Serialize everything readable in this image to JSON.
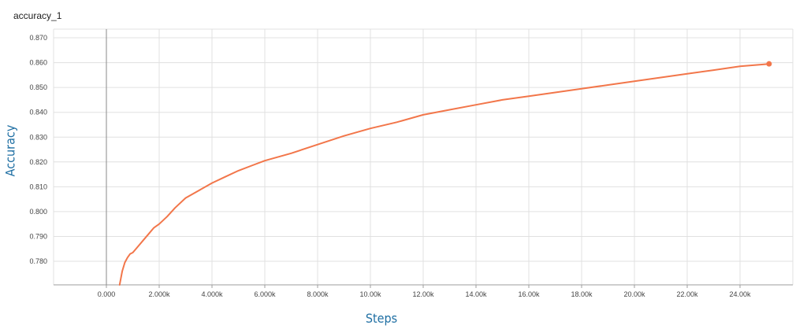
{
  "chart_data": {
    "type": "line",
    "title": "accuracy_1",
    "xlabel": "Steps",
    "ylabel": "Accuracy",
    "xlim": [
      -2000,
      26000
    ],
    "ylim": [
      0.7705,
      0.8735
    ],
    "x_ticks": [
      0,
      2000,
      4000,
      6000,
      8000,
      10000,
      12000,
      14000,
      16000,
      18000,
      20000,
      22000,
      24000
    ],
    "x_tick_labels": [
      "0.000",
      "2.000k",
      "4.000k",
      "6.000k",
      "8.000k",
      "10.00k",
      "12.00k",
      "14.00k",
      "16.00k",
      "18.00k",
      "20.00k",
      "22.00k",
      "24.00k"
    ],
    "y_ticks": [
      0.78,
      0.79,
      0.8,
      0.81,
      0.82,
      0.83,
      0.84,
      0.85,
      0.86,
      0.87
    ],
    "y_tick_labels": [
      "0.780",
      "0.790",
      "0.800",
      "0.810",
      "0.820",
      "0.830",
      "0.840",
      "0.850",
      "0.860",
      "0.870"
    ],
    "grid": true,
    "colors": {
      "line": "#f2764a",
      "grid": "#e0e0e0",
      "axis": "#9e9e9e",
      "label": "#1f6fa3"
    },
    "series": [
      {
        "x": [
          500,
          600,
          700,
          800,
          900,
          1000,
          1200,
          1400,
          1600,
          1800,
          2000,
          2300,
          2600,
          3000,
          3500,
          4000,
          4500,
          5000,
          5500,
          6000,
          7000,
          8000,
          9000,
          10000,
          11000,
          12000,
          13000,
          14000,
          15000,
          16000,
          17000,
          18000,
          19000,
          20000,
          21000,
          22000,
          23000,
          24000,
          25100
        ],
        "y": [
          0.7705,
          0.776,
          0.7795,
          0.7815,
          0.783,
          0.7835,
          0.786,
          0.7885,
          0.791,
          0.7935,
          0.795,
          0.798,
          0.8015,
          0.8055,
          0.8085,
          0.8115,
          0.814,
          0.8165,
          0.8185,
          0.8205,
          0.8235,
          0.827,
          0.8305,
          0.8335,
          0.836,
          0.839,
          0.841,
          0.843,
          0.845,
          0.8465,
          0.848,
          0.8495,
          0.851,
          0.8525,
          0.854,
          0.8555,
          0.857,
          0.8585,
          0.8595
        ]
      }
    ]
  }
}
